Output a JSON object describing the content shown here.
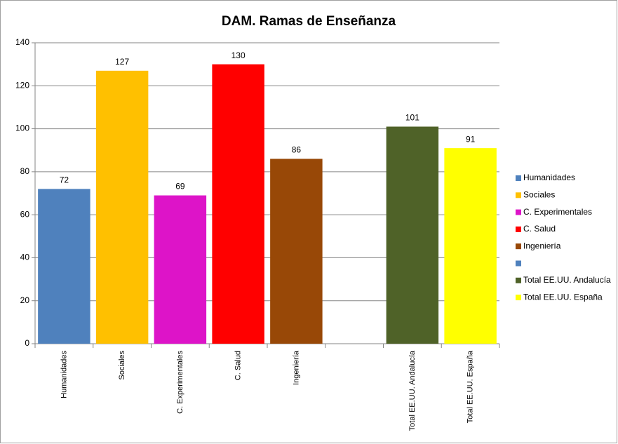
{
  "chart_data": {
    "type": "bar",
    "title": "DAM. Ramas de Enseñanza",
    "categories": [
      "Humanidades",
      "Sociales",
      "C. Experimentales",
      "C. Salud",
      "Ingeniería",
      null,
      "Total EE.UU. Andalucía",
      "Total EE.UU. España"
    ],
    "values": [
      72,
      127,
      69,
      130,
      86,
      null,
      101,
      91
    ],
    "colors": [
      "#4f81bd",
      "#ffc000",
      "#dd14c8",
      "#ff0000",
      "#984807",
      "#4f81bd",
      "#4f6228",
      "#ffff00"
    ],
    "ylim": [
      0,
      140
    ],
    "yticks": [
      0,
      20,
      40,
      60,
      80,
      100,
      120,
      140
    ],
    "grid": true,
    "legend": "right"
  }
}
